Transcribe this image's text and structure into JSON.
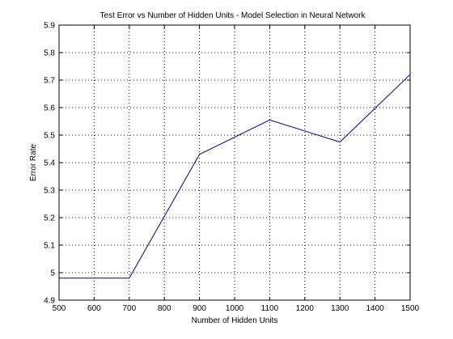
{
  "chart_data": {
    "type": "line",
    "title": "Test Error vs Number of Hidden Units - Model Selection in Neural Network",
    "xlabel": "Number of Hidden Units",
    "ylabel": "Error Rate",
    "xlim": [
      500,
      1500
    ],
    "ylim": [
      4.9,
      5.9
    ],
    "xticks": [
      500,
      600,
      700,
      800,
      900,
      1000,
      1100,
      1200,
      1300,
      1400,
      1500
    ],
    "yticks": [
      4.9,
      5,
      5.1,
      5.2,
      5.3,
      5.4,
      5.5,
      5.6,
      5.7,
      5.8,
      5.9
    ],
    "ytick_labels": [
      "4.9",
      "5",
      "5.1",
      "5.2",
      "5.3",
      "5.4",
      "5.5",
      "5.6",
      "5.7",
      "5.8",
      "5.9"
    ],
    "grid": true,
    "series": [
      {
        "color": "#00008b",
        "x": [
          500,
          700,
          900,
          1100,
          1300,
          1500
        ],
        "y": [
          4.98,
          4.98,
          5.43,
          5.555,
          5.475,
          5.72
        ]
      }
    ]
  }
}
